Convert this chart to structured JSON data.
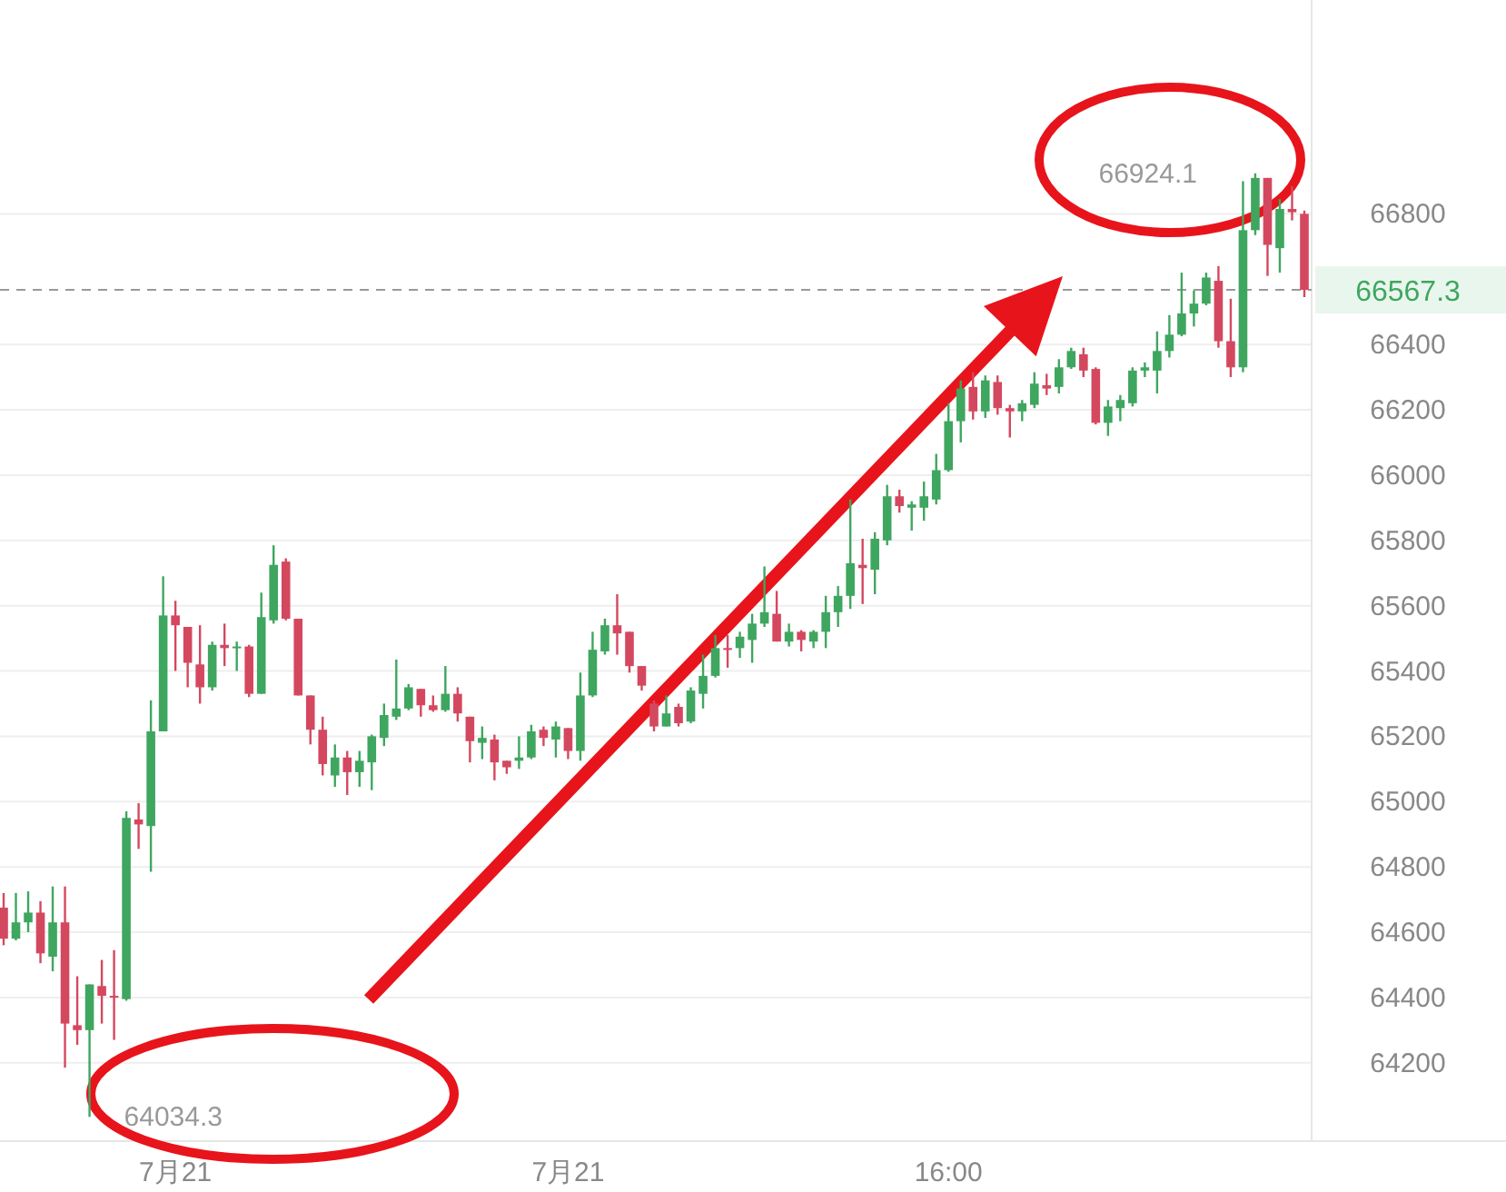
{
  "chart_data": {
    "type": "candlestick",
    "categories": [
      null,
      null,
      null,
      null,
      null,
      null,
      null,
      null,
      null,
      null,
      null,
      null,
      null,
      null,
      "7月21",
      null,
      null,
      null,
      null,
      null,
      null,
      null,
      null,
      null,
      null,
      null,
      null,
      null,
      null,
      null,
      null,
      null,
      null,
      null,
      null,
      null,
      null,
      null,
      null,
      null,
      null,
      null,
      null,
      null,
      null,
      null,
      "7月21",
      null,
      null,
      null,
      null,
      null,
      null,
      null,
      null,
      null,
      null,
      null,
      null,
      null,
      null,
      null,
      null,
      null,
      null,
      null,
      null,
      null,
      null,
      null,
      null,
      null,
      null,
      null,
      null,
      null,
      null,
      "16:00",
      null,
      null,
      null,
      null,
      null,
      null,
      null,
      null,
      null,
      null,
      null,
      null,
      null,
      null,
      null,
      null,
      null,
      null,
      null,
      null,
      null,
      null,
      null,
      null,
      null,
      null,
      null,
      null,
      null
    ],
    "ohlc": [
      [
        64675,
        64720,
        64560,
        64580
      ],
      [
        64580,
        64720,
        64575,
        64630
      ],
      [
        64630,
        64725,
        64600,
        64660
      ],
      [
        64660,
        64695,
        64505,
        64535
      ],
      [
        64525,
        64740,
        64480,
        64630
      ],
      [
        64630,
        64740,
        64185,
        64320
      ],
      [
        64315,
        64465,
        64255,
        64300
      ],
      [
        64300,
        64440,
        64034.3,
        64440
      ],
      [
        64435,
        64515,
        64320,
        64405
      ],
      [
        64405,
        64545,
        64270,
        64400
      ],
      [
        64395,
        64970,
        64390,
        64950
      ],
      [
        64945,
        64995,
        64855,
        64930
      ],
      [
        64925,
        65310,
        64785,
        65215
      ],
      [
        65215,
        65690,
        65215,
        65570
      ],
      [
        65570,
        65615,
        65400,
        65540
      ],
      [
        65535,
        65535,
        65350,
        65425
      ],
      [
        65420,
        65540,
        65300,
        65350
      ],
      [
        65350,
        65490,
        65340,
        65480
      ],
      [
        65480,
        65545,
        65415,
        65470
      ],
      [
        65470,
        65490,
        65400,
        65475
      ],
      [
        65475,
        65480,
        65320,
        65330
      ],
      [
        65330,
        65640,
        65330,
        65565
      ],
      [
        65555,
        65785,
        65545,
        65725
      ],
      [
        65735,
        65745,
        65555,
        65560
      ],
      [
        65560,
        65560,
        65325,
        65325
      ],
      [
        65325,
        65325,
        65175,
        65220
      ],
      [
        65220,
        65260,
        65080,
        65115
      ],
      [
        65080,
        65175,
        65045,
        65135
      ],
      [
        65135,
        65155,
        65020,
        65090
      ],
      [
        65090,
        65155,
        65045,
        65125
      ],
      [
        65120,
        65205,
        65035,
        65200
      ],
      [
        65195,
        65300,
        65170,
        65265
      ],
      [
        65260,
        65435,
        65250,
        65285
      ],
      [
        65285,
        65360,
        65280,
        65350
      ],
      [
        65345,
        65345,
        65260,
        65295
      ],
      [
        65295,
        65325,
        65275,
        65280
      ],
      [
        65280,
        65415,
        65275,
        65330
      ],
      [
        65330,
        65350,
        65245,
        65270
      ],
      [
        65260,
        65260,
        65120,
        65185
      ],
      [
        65180,
        65230,
        65130,
        65195
      ],
      [
        65190,
        65205,
        65065,
        65120
      ],
      [
        65125,
        65125,
        65085,
        65105
      ],
      [
        65125,
        65200,
        65100,
        65135
      ],
      [
        65135,
        65235,
        65130,
        65215
      ],
      [
        65220,
        65230,
        65170,
        65195
      ],
      [
        65190,
        65245,
        65135,
        65230
      ],
      [
        65225,
        65225,
        65130,
        65155
      ],
      [
        65155,
        65395,
        65125,
        65325
      ],
      [
        65325,
        65520,
        65320,
        65465
      ],
      [
        65460,
        65560,
        65450,
        65540
      ],
      [
        65540,
        65635,
        65450,
        65515
      ],
      [
        65520,
        65520,
        65395,
        65415
      ],
      [
        65415,
        65415,
        65340,
        65355
      ],
      [
        65300,
        65310,
        65215,
        65230
      ],
      [
        65230,
        65325,
        65230,
        65270
      ],
      [
        65290,
        65300,
        65230,
        65240
      ],
      [
        65245,
        65350,
        65240,
        65340
      ],
      [
        65330,
        65450,
        65285,
        65385
      ],
      [
        65385,
        65510,
        65380,
        65470
      ],
      [
        65470,
        65510,
        65410,
        65465
      ],
      [
        65470,
        65520,
        65440,
        65505
      ],
      [
        65495,
        65575,
        65425,
        65545
      ],
      [
        65545,
        65720,
        65535,
        65580
      ],
      [
        65575,
        65645,
        65490,
        65490
      ],
      [
        65490,
        65545,
        65475,
        65520
      ],
      [
        65520,
        65525,
        65460,
        65495
      ],
      [
        65490,
        65525,
        65470,
        65520
      ],
      [
        65520,
        65630,
        65470,
        65580
      ],
      [
        65580,
        65660,
        65535,
        65630
      ],
      [
        65630,
        65925,
        65590,
        65730
      ],
      [
        65725,
        65805,
        65605,
        65715
      ],
      [
        65710,
        65825,
        65635,
        65805
      ],
      [
        65800,
        65970,
        65785,
        65935
      ],
      [
        65935,
        65955,
        65885,
        65905
      ],
      [
        65900,
        65920,
        65830,
        65910
      ],
      [
        65900,
        65980,
        65860,
        65935
      ],
      [
        65925,
        66065,
        65910,
        66015
      ],
      [
        66015,
        66220,
        66010,
        66165
      ],
      [
        66165,
        66290,
        66100,
        66265
      ],
      [
        66270,
        66315,
        66170,
        66195
      ],
      [
        66195,
        66305,
        66175,
        66290
      ],
      [
        66285,
        66305,
        66185,
        66205
      ],
      [
        66205,
        66215,
        66115,
        66195
      ],
      [
        66195,
        66230,
        66165,
        66220
      ],
      [
        66215,
        66315,
        66205,
        66280
      ],
      [
        66275,
        66310,
        66245,
        66265
      ],
      [
        66270,
        66355,
        66250,
        66330
      ],
      [
        66330,
        66390,
        66325,
        66380
      ],
      [
        66370,
        66390,
        66300,
        66320
      ],
      [
        66325,
        66330,
        66155,
        66160
      ],
      [
        66160,
        66230,
        66120,
        66210
      ],
      [
        66205,
        66245,
        66165,
        66230
      ],
      [
        66220,
        66330,
        66210,
        66320
      ],
      [
        66320,
        66345,
        66300,
        66330
      ],
      [
        66320,
        66440,
        66250,
        66380
      ],
      [
        66380,
        66490,
        66360,
        66430
      ],
      [
        66430,
        66620,
        66425,
        66495
      ],
      [
        66495,
        66565,
        66455,
        66525
      ],
      [
        66525,
        66620,
        66520,
        66605
      ],
      [
        66595,
        66640,
        66390,
        66410
      ],
      [
        66410,
        66540,
        66300,
        66330
      ],
      [
        66330,
        66900,
        66315,
        66750
      ],
      [
        66750,
        66924.1,
        66735,
        66910
      ],
      [
        66910,
        66910,
        66610,
        66705
      ],
      [
        66695,
        66845,
        66620,
        66815
      ],
      [
        66815,
        66885,
        66780,
        66805
      ],
      [
        66800,
        66810,
        66545,
        66567.3
      ]
    ],
    "colors": [
      "#d4485f",
      "#3fa65f",
      "#3fa65f",
      "#d4485f",
      "#3fa65f",
      "#d4485f",
      "#d4485f",
      "#3fa65f",
      "#d4485f",
      "#d4485f",
      "#3fa65f",
      "#d4485f",
      "#3fa65f",
      "#3fa65f",
      "#d4485f",
      "#d4485f",
      "#d4485f",
      "#3fa65f",
      "#d4485f",
      "#3fa65f",
      "#d4485f",
      "#3fa65f",
      "#3fa65f",
      "#d4485f",
      "#d4485f",
      "#d4485f",
      "#d4485f",
      "#3fa65f",
      "#d4485f",
      "#3fa65f",
      "#3fa65f",
      "#3fa65f",
      "#3fa65f",
      "#3fa65f",
      "#d4485f",
      "#d4485f",
      "#3fa65f",
      "#d4485f",
      "#d4485f",
      "#3fa65f",
      "#d4485f",
      "#d4485f",
      "#3fa65f",
      "#3fa65f",
      "#d4485f",
      "#3fa65f",
      "#d4485f",
      "#3fa65f",
      "#3fa65f",
      "#3fa65f",
      "#d4485f",
      "#d4485f",
      "#d4485f",
      "#d4485f",
      "#3fa65f",
      "#d4485f",
      "#3fa65f",
      "#3fa65f",
      "#3fa65f",
      "#d4485f",
      "#3fa65f",
      "#3fa65f",
      "#3fa65f",
      "#d4485f",
      "#3fa65f",
      "#d4485f",
      "#3fa65f",
      "#3fa65f",
      "#3fa65f",
      "#3fa65f",
      "#d4485f",
      "#3fa65f",
      "#3fa65f",
      "#d4485f",
      "#3fa65f",
      "#3fa65f",
      "#3fa65f",
      "#3fa65f",
      "#3fa65f",
      "#d4485f",
      "#3fa65f",
      "#d4485f",
      "#d4485f",
      "#3fa65f",
      "#3fa65f",
      "#d4485f",
      "#3fa65f",
      "#3fa65f",
      "#d4485f",
      "#d4485f",
      "#3fa65f",
      "#3fa65f",
      "#3fa65f",
      "#3fa65f",
      "#3fa65f",
      "#3fa65f",
      "#3fa65f",
      "#3fa65f",
      "#3fa65f",
      "#d4485f",
      "#d4485f",
      "#3fa65f",
      "#3fa65f",
      "#d4485f",
      "#3fa65f",
      "#d4485f",
      "#d4485f"
    ],
    "ylim": [
      63960,
      67455
    ],
    "yticks": [
      64200,
      64400,
      64600,
      64800,
      65000,
      65200,
      65400,
      65600,
      65800,
      66000,
      66200,
      66400,
      66800
    ],
    "grid": "y",
    "ref_lines": [
      {
        "axis": "y",
        "value": 66567.3,
        "label": "66567.3",
        "color": "#999999",
        "line_style": "dashed"
      }
    ],
    "annotations": [
      "66924.1",
      "64034.3"
    ]
  }
}
